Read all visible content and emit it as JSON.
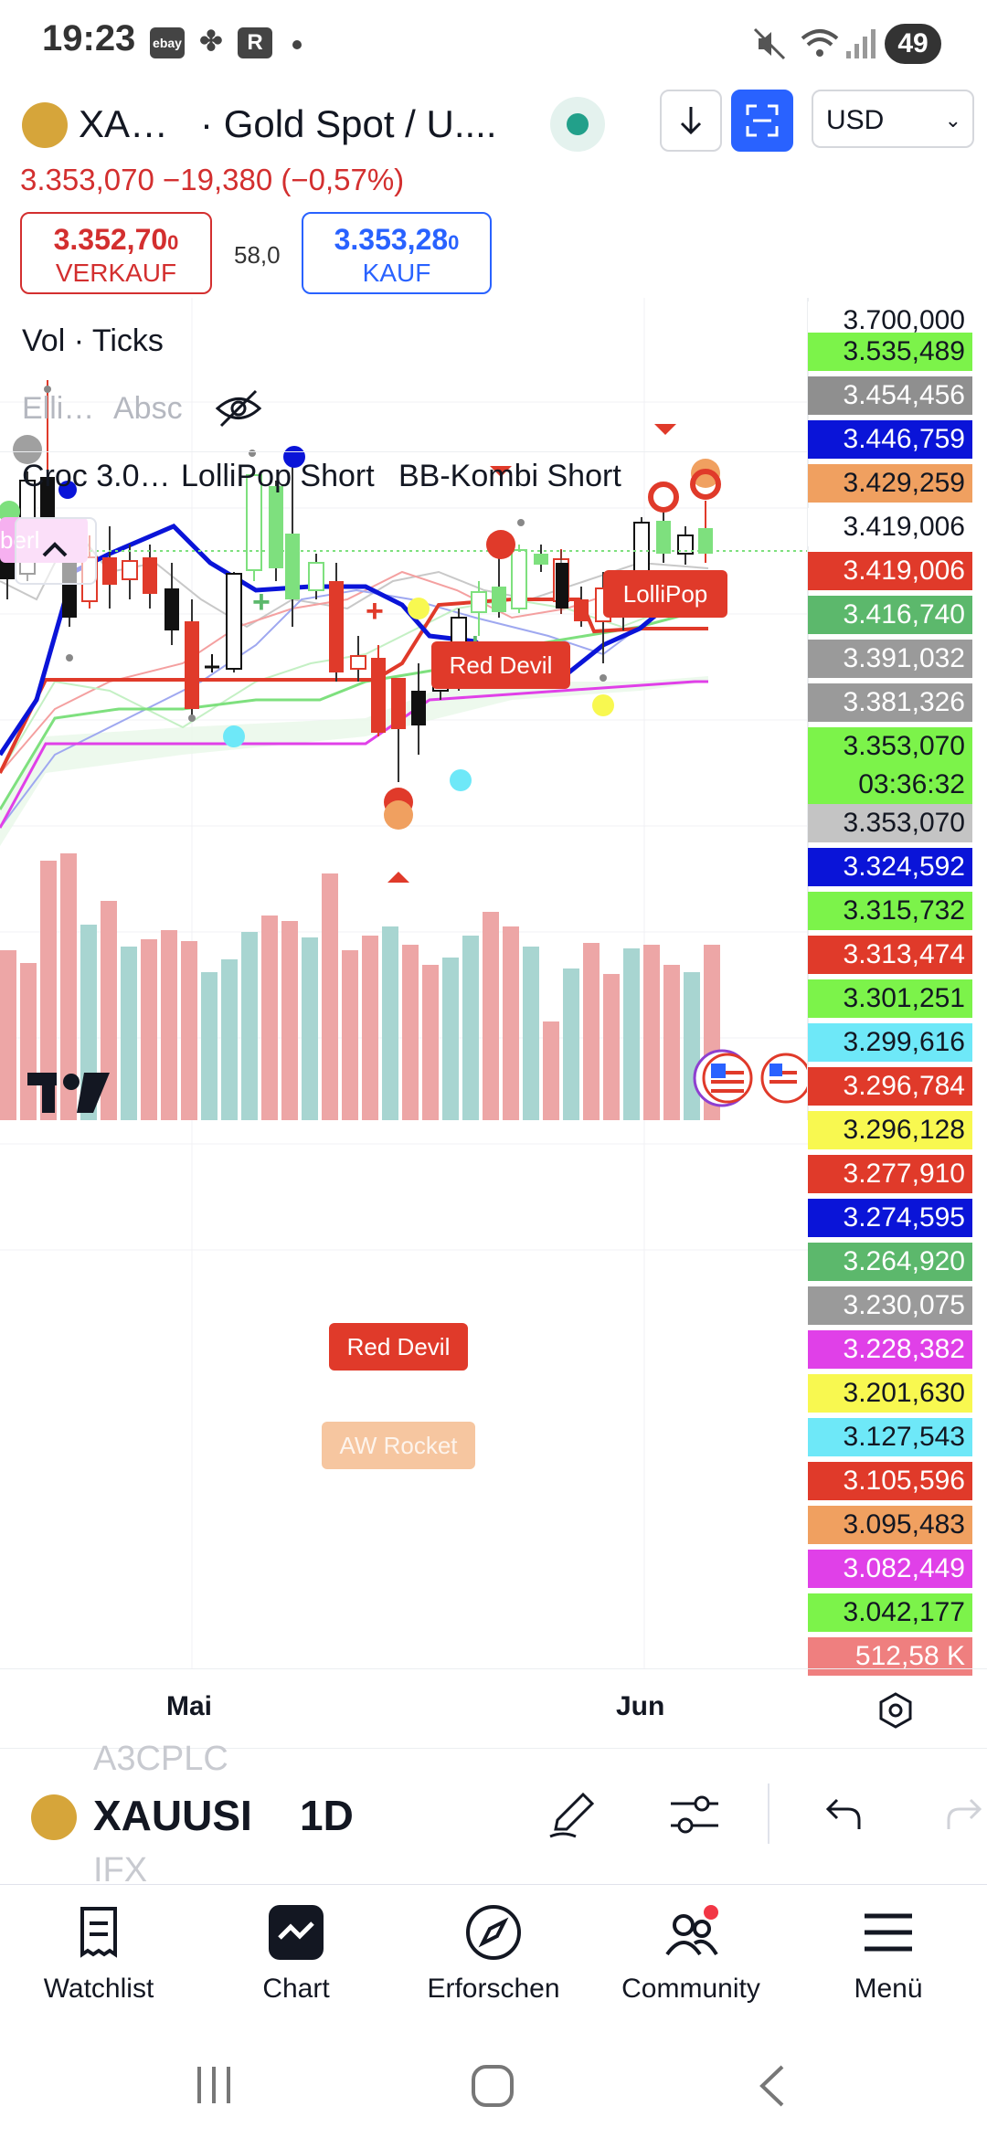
{
  "status_bar": {
    "time": "19:23",
    "app_icons": [
      "ebay",
      "pinwheel-icon",
      "R"
    ],
    "battery": "49",
    "icons": [
      "mute-icon",
      "wifi-icon",
      "signal-icon"
    ]
  },
  "header": {
    "symbol_short": "XA…",
    "title": "· Gold Spot / U....",
    "currency": "USD",
    "price_line": "3.353,070  −19,380 (−0,57%)",
    "sell": {
      "price": "3.352,70",
      "price_small": "0",
      "label": "VERKAUF"
    },
    "spread": "58,0",
    "buy": {
      "price": "3.353,28",
      "price_small": "0",
      "label": "KAUF"
    }
  },
  "indicators": {
    "vol": "Vol · Ticks",
    "elli": "Elli…",
    "absc": "Absc",
    "croc": "Croc 3.0…",
    "lollipop": "LolliPop Short",
    "bb": "BB-Kombi Short",
    "partial_tag": "berl"
  },
  "chart_flags": {
    "lollipop": "LolliPop",
    "red_devil_top": "Red Devil",
    "red_devil_bottom": "Red Devil",
    "aw_rocket": "AW Rocket"
  },
  "price_scale": [
    {
      "text": "3.700,000",
      "bg": "#ffffff",
      "fg": "#131722"
    },
    {
      "text": "3.535,489",
      "bg": "#7cf34a",
      "fg": "#131722"
    },
    {
      "text": "3.454,456",
      "bg": "#8f8f8f",
      "fg": "#ffffff"
    },
    {
      "text": "3.446,759",
      "bg": "#0a14d8",
      "fg": "#ffffff"
    },
    {
      "text": "3.429,259",
      "bg": "#f0a060",
      "fg": "#131722"
    },
    {
      "text": "3.419,006",
      "bg": "#ffffff",
      "fg": "#131722"
    },
    {
      "text": "3.419,006",
      "bg": "#e03a2a",
      "fg": "#ffffff"
    },
    {
      "text": "3.416,740",
      "bg": "#5cb86c",
      "fg": "#ffffff"
    },
    {
      "text": "3.391,032",
      "bg": "#9a9a9a",
      "fg": "#ffffff"
    },
    {
      "text": "3.381,326",
      "bg": "#9a9a9a",
      "fg": "#ffffff"
    },
    {
      "text": "3.353,070",
      "bg": "#7cf34a",
      "fg": "#131722"
    },
    {
      "text": "03:36:32",
      "bg": "#7cf34a",
      "fg": "#131722"
    },
    {
      "text": "3.353,070",
      "bg": "#c4c4c4",
      "fg": "#131722"
    },
    {
      "text": "3.324,592",
      "bg": "#0a14d8",
      "fg": "#ffffff"
    },
    {
      "text": "3.315,732",
      "bg": "#7cf34a",
      "fg": "#131722"
    },
    {
      "text": "3.313,474",
      "bg": "#e03a2a",
      "fg": "#ffffff"
    },
    {
      "text": "3.301,251",
      "bg": "#7cf34a",
      "fg": "#131722"
    },
    {
      "text": "3.299,616",
      "bg": "#6ee8f8",
      "fg": "#131722"
    },
    {
      "text": "3.296,784",
      "bg": "#e03a2a",
      "fg": "#ffffff"
    },
    {
      "text": "3.296,128",
      "bg": "#f8f850",
      "fg": "#131722"
    },
    {
      "text": "3.277,910",
      "bg": "#e03a2a",
      "fg": "#ffffff"
    },
    {
      "text": "3.274,595",
      "bg": "#0a14d8",
      "fg": "#ffffff"
    },
    {
      "text": "3.264,920",
      "bg": "#5cb86c",
      "fg": "#ffffff"
    },
    {
      "text": "3.230,075",
      "bg": "#9a9a9a",
      "fg": "#ffffff"
    },
    {
      "text": "3.228,382",
      "bg": "#e040e8",
      "fg": "#ffffff"
    },
    {
      "text": "3.201,630",
      "bg": "#f8f850",
      "fg": "#131722"
    },
    {
      "text": "3.127,543",
      "bg": "#6ee8f8",
      "fg": "#131722"
    },
    {
      "text": "3.105,596",
      "bg": "#e03a2a",
      "fg": "#ffffff"
    },
    {
      "text": "3.095,483",
      "bg": "#f0a060",
      "fg": "#131722"
    },
    {
      "text": "3.082,449",
      "bg": "#e040e8",
      "fg": "#ffffff"
    },
    {
      "text": "3.042,177",
      "bg": "#7cf34a",
      "fg": "#131722"
    },
    {
      "text": "512,58 K",
      "bg": "#ef7f7f",
      "fg": "#ffffff"
    }
  ],
  "date_axis": {
    "may": "Mai",
    "jun": "Jun"
  },
  "toolbar": {
    "ghost_top": "A3CPLC",
    "symbol": "XAUUSI",
    "interval": "1D",
    "ghost_bottom": "IFX"
  },
  "bottom_nav": [
    {
      "label": "Watchlist",
      "icon": "watchlist-icon"
    },
    {
      "label": "Chart",
      "icon": "chart-icon"
    },
    {
      "label": "Erforschen",
      "icon": "compass-icon"
    },
    {
      "label": "Community",
      "icon": "community-icon"
    },
    {
      "label": "Menü",
      "icon": "menu-icon"
    }
  ],
  "colors": {
    "accent_blue": "#2962ff",
    "down_red": "#d32f2f",
    "up_green": "#7cf34a",
    "live_green": "#22a08a"
  }
}
